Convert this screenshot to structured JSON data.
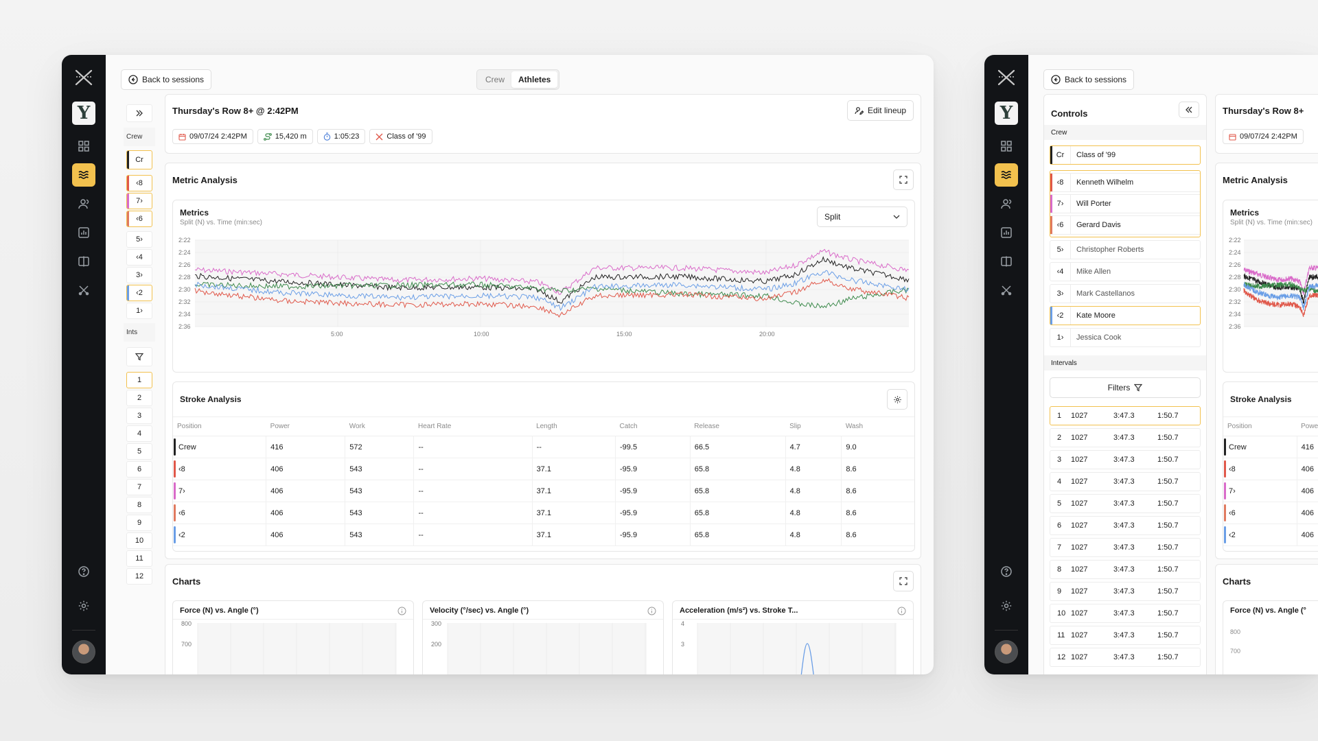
{
  "nav": {
    "back_label": "Back to sessions",
    "toggle": [
      "Crew",
      "Athletes"
    ],
    "team_letter": "Y"
  },
  "session": {
    "title": "Thursday's Row 8+ @ 2:42PM",
    "edit_label": "Edit lineup",
    "date": "09/07/24 2:42PM",
    "distance": "15,420 m",
    "duration": "1:05:23",
    "crew": "Class of '99"
  },
  "side": {
    "crew_label": "Crew",
    "ints_label": "Ints",
    "crew_cell": "Cr",
    "positions": [
      "‹8",
      "7›",
      "‹6",
      "5›",
      "‹4",
      "3›",
      "‹2",
      "1›"
    ],
    "intervals": [
      "1",
      "2",
      "3",
      "4",
      "5",
      "6",
      "7",
      "8",
      "9",
      "10",
      "11",
      "12"
    ]
  },
  "metric": {
    "title": "Metric Analysis",
    "sub_title": "Metrics",
    "subtitle": "Split (N) vs. Time (min:sec)",
    "select_value": "Split"
  },
  "chart_data": {
    "type": "line",
    "title": "Metrics",
    "xlabel": "Time (min:sec)",
    "ylabel": "Split (N)",
    "y_ticks": [
      "2:22",
      "2:24",
      "2:26",
      "2:28",
      "2:30",
      "2:32",
      "2:34",
      "2:36"
    ],
    "x_ticks": [
      "5:00",
      "10:00",
      "15:00",
      "20:00"
    ],
    "x_tick_minutes": [
      5,
      10,
      15,
      20
    ],
    "xlim_minutes": [
      0,
      25
    ],
    "ylim_seconds": [
      142,
      156
    ],
    "series": [
      {
        "name": "pink",
        "color": "#d96bc9",
        "base": 147.2,
        "anchors": [
          [
            0,
            146.8
          ],
          [
            3,
            147.5
          ],
          [
            7,
            148.5
          ],
          [
            10,
            148.2
          ],
          [
            12,
            148.8
          ],
          [
            12.8,
            150.5
          ],
          [
            14,
            146.5
          ],
          [
            17,
            146.5
          ],
          [
            20,
            147.3
          ],
          [
            21,
            146.1
          ],
          [
            22,
            143.8
          ],
          [
            23,
            145.2
          ],
          [
            25,
            146.9
          ]
        ]
      },
      {
        "name": "black",
        "color": "#222222",
        "base": 148.5,
        "anchors": [
          [
            0,
            147.8
          ],
          [
            3,
            148.7
          ],
          [
            7,
            149.7
          ],
          [
            10,
            149.6
          ],
          [
            12,
            150
          ],
          [
            12.8,
            152
          ],
          [
            14,
            148
          ],
          [
            17,
            147.9
          ],
          [
            20,
            148.7
          ],
          [
            21,
            147.6
          ],
          [
            22,
            145.1
          ],
          [
            23,
            146.6
          ],
          [
            25,
            148.4
          ]
        ]
      },
      {
        "name": "green",
        "color": "#3d8a4c",
        "base": 149.5,
        "anchors": [
          [
            0,
            149.2
          ],
          [
            3,
            149.5
          ],
          [
            7,
            149.3
          ],
          [
            10,
            149.2
          ],
          [
            12,
            149.8
          ],
          [
            12.8,
            150.2
          ],
          [
            14,
            149.8
          ],
          [
            17,
            150.7
          ],
          [
            20,
            151
          ],
          [
            21,
            152.2
          ],
          [
            22,
            152.8
          ],
          [
            23,
            151.5
          ],
          [
            25,
            150
          ]
        ]
      },
      {
        "name": "blue",
        "color": "#6a9ee6",
        "base": 150.5,
        "anchors": [
          [
            0,
            149.2
          ],
          [
            3,
            150.5
          ],
          [
            7,
            151.3
          ],
          [
            10,
            151
          ],
          [
            12,
            151.3
          ],
          [
            12.8,
            153
          ],
          [
            14,
            149.6
          ],
          [
            17,
            149.2
          ],
          [
            20,
            150
          ],
          [
            21,
            149
          ],
          [
            22,
            147.1
          ],
          [
            23,
            148.5
          ],
          [
            25,
            150
          ]
        ]
      },
      {
        "name": "red",
        "color": "#e0584a",
        "base": 151.5,
        "anchors": [
          [
            0,
            150.2
          ],
          [
            3,
            151.8
          ],
          [
            7,
            152.5
          ],
          [
            10,
            152.3
          ],
          [
            12,
            152.8
          ],
          [
            12.8,
            154.2
          ],
          [
            14,
            151
          ],
          [
            17,
            150.8
          ],
          [
            20,
            151.5
          ],
          [
            21,
            150.5
          ],
          [
            22,
            148.4
          ],
          [
            23,
            149.9
          ],
          [
            25,
            151.4
          ]
        ]
      }
    ]
  },
  "stroke": {
    "title": "Stroke Analysis",
    "columns": [
      "Position",
      "Power",
      "Work",
      "Heart Rate",
      "Length",
      "Catch",
      "Release",
      "Slip",
      "Wash"
    ],
    "rows": [
      {
        "pos": "Crew",
        "color": "#222222",
        "cells": [
          "416",
          "572",
          "--",
          "--",
          "-99.5",
          "66.5",
          "4.7",
          "9.0"
        ]
      },
      {
        "pos": "‹8",
        "color": "#e0584a",
        "cells": [
          "406",
          "543",
          "--",
          "37.1",
          "-95.9",
          "65.8",
          "4.8",
          "8.6"
        ]
      },
      {
        "pos": "7›",
        "color": "#d96bc9",
        "cells": [
          "406",
          "543",
          "--",
          "37.1",
          "-95.9",
          "65.8",
          "4.8",
          "8.6"
        ]
      },
      {
        "pos": "‹6",
        "color": "#e07a5f",
        "cells": [
          "406",
          "543",
          "--",
          "37.1",
          "-95.9",
          "65.8",
          "4.8",
          "8.6"
        ]
      },
      {
        "pos": "‹2",
        "color": "#6a9ee6",
        "cells": [
          "406",
          "543",
          "--",
          "37.1",
          "-95.9",
          "65.8",
          "4.8",
          "8.6"
        ]
      }
    ]
  },
  "charts": {
    "title": "Charts",
    "panels": [
      {
        "title": "Force (N) vs. Angle (°)",
        "ticks": [
          "800",
          "700"
        ]
      },
      {
        "title": "Velocity (°/sec) vs. Angle (°)",
        "ticks": [
          "300",
          "200"
        ]
      },
      {
        "title": "Acceleration (m/s²) vs. Stroke T...",
        "ticks": [
          "4",
          "3"
        ]
      }
    ]
  },
  "controls": {
    "title": "Controls",
    "crew_label": "Crew",
    "crew_row": {
      "code": "Cr",
      "name": "Class of '99"
    },
    "athletes": [
      {
        "pos": "‹8",
        "name": "Kenneth Wilhelm",
        "color": "#e0584a"
      },
      {
        "pos": "7›",
        "name": "Will Porter",
        "color": "#d96bc9"
      },
      {
        "pos": "‹6",
        "name": "Gerard Davis",
        "color": "#e07a5f"
      },
      {
        "pos": "5›",
        "name": "Christopher Roberts",
        "color": ""
      },
      {
        "pos": "‹4",
        "name": "Mike Allen",
        "color": ""
      },
      {
        "pos": "3›",
        "name": "Mark Castellanos",
        "color": ""
      },
      {
        "pos": "‹2",
        "name": "Kate Moore",
        "color": "#6a9ee6"
      },
      {
        "pos": "1›",
        "name": "Jessica Cook",
        "color": ""
      }
    ],
    "intervals_label": "Intervals",
    "filters_label": "Filters",
    "intervals": [
      [
        "1",
        "1027",
        "3:47.3",
        "1:50.7"
      ],
      [
        "2",
        "1027",
        "3:47.3",
        "1:50.7"
      ],
      [
        "3",
        "1027",
        "3:47.3",
        "1:50.7"
      ],
      [
        "4",
        "1027",
        "3:47.3",
        "1:50.7"
      ],
      [
        "5",
        "1027",
        "3:47.3",
        "1:50.7"
      ],
      [
        "6",
        "1027",
        "3:47.3",
        "1:50.7"
      ],
      [
        "7",
        "1027",
        "3:47.3",
        "1:50.7"
      ],
      [
        "8",
        "1027",
        "3:47.3",
        "1:50.7"
      ],
      [
        "9",
        "1027",
        "3:47.3",
        "1:50.7"
      ],
      [
        "10",
        "1027",
        "3:47.3",
        "1:50.7"
      ],
      [
        "11",
        "1027",
        "3:47.3",
        "1:50.7"
      ],
      [
        "12",
        "1027",
        "3:47.3",
        "1:50.7"
      ]
    ]
  },
  "preview": {
    "title": "Thursday's Row 8+",
    "date": "09/07/24 2:42PM",
    "metric_title": "Metric Analysis",
    "metrics_label": "Metrics",
    "metrics_sub": "Split (N) vs. Time (min:sec)",
    "stroke_title": "Stroke Analysis",
    "columns": [
      "Position",
      "Power"
    ],
    "rows": [
      {
        "pos": "Crew",
        "val": "416",
        "color": "#222222"
      },
      {
        "pos": "‹8",
        "val": "406",
        "color": "#e0584a"
      },
      {
        "pos": "7›",
        "val": "406",
        "color": "#d96bc9"
      },
      {
        "pos": "‹6",
        "val": "406",
        "color": "#e07a5f"
      },
      {
        "pos": "‹2",
        "val": "406",
        "color": "#6a9ee6"
      }
    ],
    "charts_title": "Charts",
    "chart_title": "Force (N) vs. Angle (°",
    "ticks": [
      "800",
      "700"
    ]
  }
}
